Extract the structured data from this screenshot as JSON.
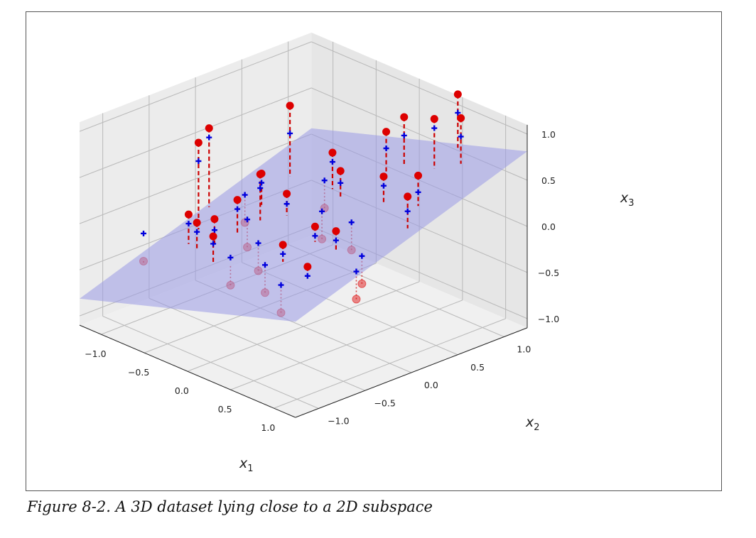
{
  "caption": "Figure 8-2. A 3D dataset lying close to a 2D subspace",
  "colors": {
    "original_points": "#dd0000",
    "projected_points": "#0000dd",
    "plane": "#9a9ae6",
    "residual_line": "#cc0000",
    "pane_left": "#ececec",
    "pane_right": "#e6e6e6",
    "pane_floor": "#f0f0f0",
    "grid": "#b9b9b9"
  },
  "chart_data": {
    "type": "scatter3d",
    "title": "",
    "xlabel": "x1",
    "ylabel": "x2",
    "zlabel": "x3",
    "axis_labels": {
      "x": {
        "base": "x",
        "sub": "1"
      },
      "y": {
        "base": "x",
        "sub": "2"
      },
      "z": {
        "base": "x",
        "sub": "3"
      }
    },
    "xlim": [
      -1.25,
      1.25
    ],
    "ylim": [
      -1.25,
      1.25
    ],
    "zlim": [
      -1.1,
      1.1
    ],
    "x_ticks": [
      "−1.0",
      "−0.5",
      "0.0",
      "0.5",
      "1.0"
    ],
    "y_ticks": [
      "−1.0",
      "−0.5",
      "0.0",
      "0.5",
      "1.0"
    ],
    "z_ticks": [
      "−1.0",
      "−0.5",
      "0.0",
      "0.5",
      "1.0"
    ],
    "x_tick_values": [
      -1.0,
      -0.5,
      0.0,
      0.5,
      1.0
    ],
    "y_tick_values": [
      -1.0,
      -0.5,
      0.0,
      0.5,
      1.0
    ],
    "z_tick_values": [
      -1.0,
      -0.5,
      0.0,
      0.5,
      1.0
    ],
    "grid": true,
    "legend": "none",
    "plane": {
      "equation": "x3 = a*x1 + b*x2",
      "a": 0.3,
      "b": 0.35,
      "x_range": [
        -1.25,
        1.25
      ],
      "y_range": [
        -1.25,
        1.25
      ]
    },
    "series": [
      {
        "marker": "filled circle",
        "color_key": "original_points",
        "role": "above plane",
        "points": [
          [
            -1.2,
            0.1,
            0.53
          ],
          [
            -1.0,
            -0.2,
            0.57
          ],
          [
            -0.8,
            0.6,
            0.74
          ],
          [
            -0.5,
            0.0,
            0.35
          ],
          [
            -0.3,
            0.1,
            0.18
          ],
          [
            -0.6,
            -0.4,
            -0.02
          ],
          [
            -0.2,
            0.5,
            0.51
          ],
          [
            0.1,
            0.8,
            0.74
          ],
          [
            0.3,
            -0.5,
            0.1
          ],
          [
            0.7,
            -0.3,
            0.33
          ],
          [
            0.9,
            0.4,
            0.74
          ],
          [
            1.1,
            0.1,
            0.71
          ],
          [
            -0.4,
            -0.6,
            -0.05
          ],
          [
            0.5,
            0.4,
            0.57
          ],
          [
            0.2,
            0.9,
            0.9
          ],
          [
            0.55,
            0.9,
            1.02
          ],
          [
            0.75,
            1.0,
            1.07
          ],
          [
            0.5,
            1.2,
            1.15
          ],
          [
            -0.7,
            0.2,
            0.2
          ],
          [
            0.0,
            0.4,
            0.43
          ],
          [
            -0.9,
            -0.4,
            -0.09
          ],
          [
            0.35,
            -0.2,
            0.2
          ],
          [
            -0.55,
            -0.2,
            0.13
          ],
          [
            0.8,
            -0.7,
            0.14
          ],
          [
            -0.75,
            -0.45,
            -0.1
          ]
        ]
      },
      {
        "marker": "plus",
        "color_key": "projected_points",
        "role": "projections onto plane",
        "points": [
          [
            -1.2,
            0.1,
            0.43
          ],
          [
            -1.0,
            -0.2,
            0.37
          ],
          [
            -0.8,
            0.6,
            0.44
          ],
          [
            -0.5,
            0.0,
            0.2
          ],
          [
            -0.3,
            0.1,
            0.07
          ],
          [
            -0.6,
            -0.4,
            -0.14
          ],
          [
            -0.2,
            0.5,
            0.41
          ],
          [
            0.1,
            0.8,
            0.56
          ],
          [
            0.3,
            -0.5,
            -0.0
          ],
          [
            0.7,
            -0.3,
            0.23
          ],
          [
            0.9,
            0.4,
            0.56
          ],
          [
            1.1,
            0.1,
            0.55
          ],
          [
            -0.4,
            -0.6,
            -0.13
          ],
          [
            0.5,
            0.4,
            0.47
          ],
          [
            0.2,
            0.9,
            0.7
          ],
          [
            0.55,
            0.9,
            0.92
          ],
          [
            0.75,
            1.0,
            0.87
          ],
          [
            0.5,
            1.2,
            0.95
          ],
          [
            -0.7,
            0.2,
            0.1
          ],
          [
            0.0,
            0.4,
            0.3
          ],
          [
            -0.9,
            -0.4,
            -0.19
          ],
          [
            0.35,
            -0.2,
            0.1
          ],
          [
            -0.55,
            -0.2,
            0.03
          ],
          [
            0.8,
            -0.7,
            0.04
          ],
          [
            -0.75,
            -0.45,
            -0.2
          ],
          [
            -1.1,
            -0.7,
            -0.26
          ],
          [
            -0.2,
            -0.6,
            -0.2
          ],
          [
            0.2,
            -0.6,
            -0.12
          ],
          [
            0.6,
            -0.8,
            -0.1
          ],
          [
            1.0,
            -0.3,
            0.18
          ],
          [
            1.15,
            -0.5,
            0.15
          ],
          [
            -0.4,
            0.6,
            0.09
          ],
          [
            0.0,
            0.2,
            0.07
          ],
          [
            -0.2,
            -0.3,
            -0.16
          ],
          [
            -1.0,
            0.3,
            -0.19
          ],
          [
            -0.65,
            0.0,
            -0.2
          ],
          [
            0.45,
            0.1,
            0.17
          ]
        ]
      },
      {
        "marker": "translucent circle",
        "color_key": "original_points",
        "role": "below plane",
        "points": [
          [
            -1.1,
            -0.7,
            -0.56
          ],
          [
            -0.2,
            -0.6,
            -0.5
          ],
          [
            0.2,
            -0.6,
            -0.42
          ],
          [
            0.6,
            -0.8,
            -0.4
          ],
          [
            1.0,
            -0.3,
            -0.12
          ],
          [
            1.15,
            -0.5,
            -0.15
          ],
          [
            -0.4,
            0.6,
            -0.21
          ],
          [
            0.0,
            0.2,
            -0.23
          ],
          [
            -0.2,
            -0.3,
            -0.46
          ],
          [
            -1.0,
            0.3,
            -0.49
          ],
          [
            -0.65,
            0.0,
            -0.5
          ],
          [
            0.45,
            0.1,
            -0.13
          ]
        ]
      }
    ]
  }
}
